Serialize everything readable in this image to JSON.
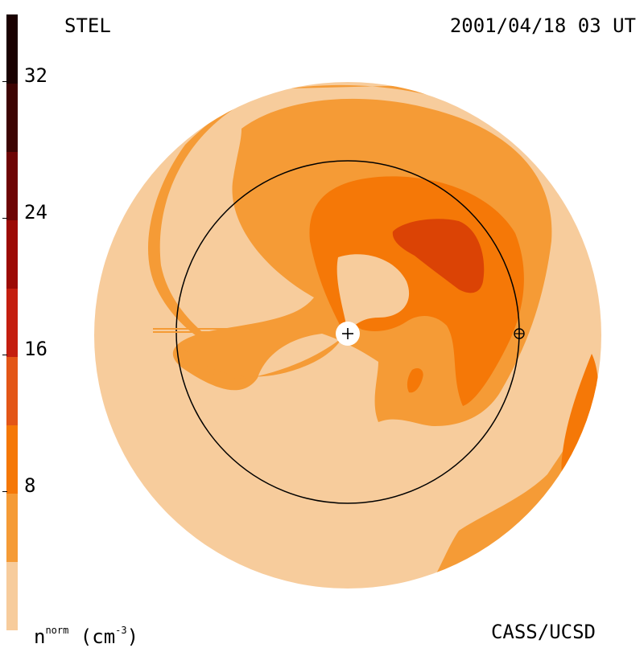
{
  "header": {
    "left_label": "STEL",
    "timestamp": "2001/04/18 03 UT"
  },
  "footer": {
    "credit": "CASS/UCSD",
    "unit_base": "n",
    "unit_sup": "norm",
    "unit_tail": " (cm",
    "unit_exp": "-3",
    "unit_close": ")"
  },
  "colorbar": {
    "ticks": [
      "32",
      "24",
      "16",
      "8"
    ],
    "colors": [
      "#f7cc9c",
      "#f59b36",
      "#f57807",
      "#e35617",
      "#c41e0f",
      "#9c0a05",
      "#6e0505",
      "#3d0403",
      "#1a0101"
    ]
  },
  "map": {
    "colors": {
      "background": "#f7cc9c",
      "band1": "#f59b36",
      "band2": "#f57807",
      "band3": "#db4305"
    },
    "markers": {
      "sun_icon": "sun-plus-icon",
      "earth_icon": "earth-circle-plus-icon"
    }
  }
}
